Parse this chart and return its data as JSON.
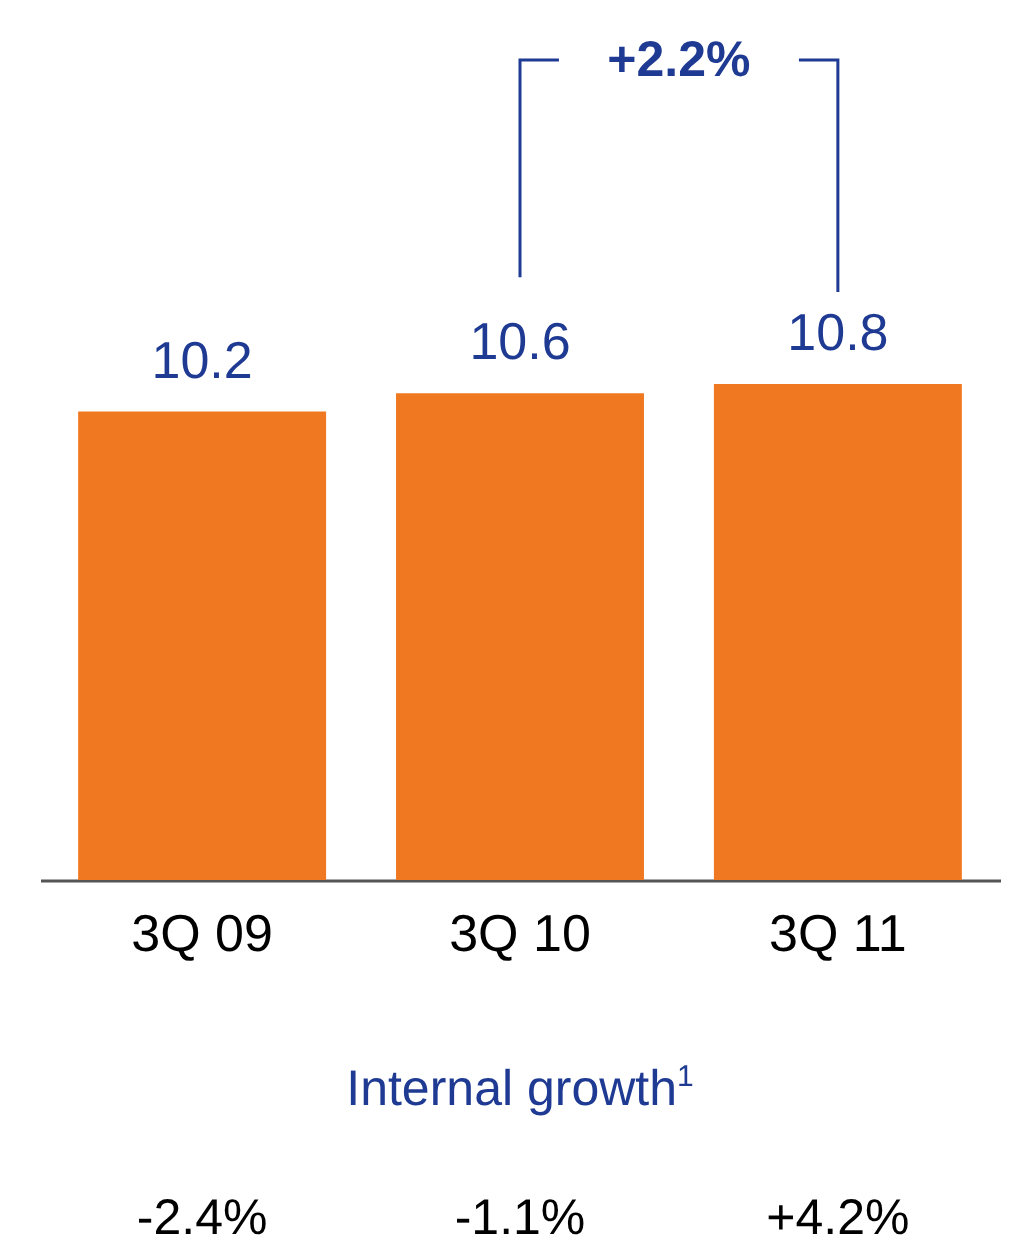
{
  "chart_data": {
    "type": "bar",
    "categories": [
      "3Q 09",
      "3Q 10",
      "3Q 11"
    ],
    "values": [
      10.2,
      10.6,
      10.8
    ],
    "color": "#f07820",
    "data_labels": true,
    "annotations": [
      "+2.2%",
      "Internal growth$^{1}$",
      "-2.4%",
      "-1.1%",
      "+4.2%"
    ]
  }
}
